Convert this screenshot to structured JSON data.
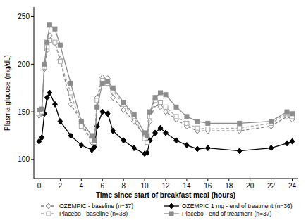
{
  "chart_data": {
    "type": "line",
    "x_label": "Time since start of breakfast meal (hours)",
    "y_label": "Plasma glucose (mg/dL)",
    "x": [
      0,
      0.25,
      0.5,
      0.75,
      1,
      1.5,
      2,
      3,
      4,
      5,
      5.25,
      5.5,
      6,
      6.5,
      7,
      8,
      9,
      10,
      10.25,
      10.5,
      11,
      11.5,
      12,
      13,
      14,
      15,
      16,
      19,
      22,
      23.5,
      24
    ],
    "xlim": [
      -0.5,
      24.5
    ],
    "xticks": [
      0,
      2,
      4,
      6,
      8,
      10,
      12,
      14,
      16,
      18,
      20,
      22,
      24
    ],
    "ylim": [
      80,
      260
    ],
    "yticks": [
      100,
      150,
      200,
      250
    ],
    "grid": false,
    "legend": "bottom",
    "series": [
      {
        "name": "OZEMPIC - baseline (n=37)",
        "color": "#7f7f7f",
        "marker": "diamond-open",
        "line_style": "dashed",
        "values": [
          146,
          148,
          195,
          215,
          230,
          222,
          205,
          158,
          140,
          118,
          118,
          165,
          186,
          185,
          165,
          152,
          140,
          125,
          120,
          140,
          158,
          155,
          150,
          142,
          135,
          130,
          130,
          130,
          135,
          145,
          142
        ]
      },
      {
        "name": "OZEMPIC 1 mg - end of treatment (n=36)",
        "color": "#000000",
        "marker": "diamond",
        "line_style": "solid",
        "values": [
          119,
          123,
          148,
          165,
          170,
          158,
          140,
          125,
          115,
          110,
          113,
          135,
          150,
          148,
          130,
          120,
          112,
          106,
          107,
          120,
          128,
          133,
          128,
          120,
          115,
          111,
          112,
          109,
          112,
          117,
          119
        ]
      },
      {
        "name": "Placebo - baseline (n=38)",
        "color": "#a6a6a6",
        "marker": "square-open",
        "line_style": "dashed",
        "values": [
          148,
          150,
          197,
          218,
          225,
          223,
          203,
          170,
          135,
          120,
          118,
          162,
          183,
          180,
          172,
          158,
          145,
          122,
          118,
          145,
          162,
          160,
          155,
          145,
          138,
          133,
          132,
          133,
          138,
          148,
          145
        ]
      },
      {
        "name": "Placebo - end of treatment (n=37)",
        "color": "#8c8c8c",
        "marker": "square",
        "line_style": "solid",
        "values": [
          152,
          153,
          200,
          223,
          241,
          237,
          220,
          180,
          140,
          125,
          120,
          155,
          180,
          182,
          175,
          160,
          147,
          128,
          125,
          150,
          165,
          170,
          168,
          155,
          145,
          140,
          138,
          138,
          140,
          150,
          148
        ]
      }
    ]
  }
}
